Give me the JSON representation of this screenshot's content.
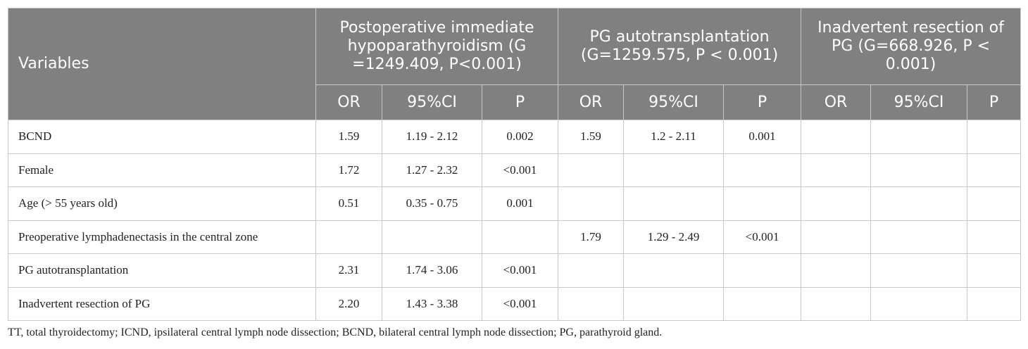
{
  "table": {
    "header": {
      "variables": "Variables",
      "groups": [
        "Postoperative immediate hypoparathyroidism (G =1249.409, P<0.001)",
        "PG autotransplantation (G=1259.575, P < 0.001)",
        "Inadvertent resection of PG (G=668.926, P < 0.001)"
      ],
      "subheaders": [
        "OR",
        "95%CI",
        "P",
        "OR",
        "95%CI",
        "P",
        "OR",
        "95%CI",
        "P"
      ]
    },
    "rows": [
      {
        "label": "BCND",
        "cells": [
          "1.59",
          "1.19 - 2.12",
          "0.002",
          "1.59",
          "1.2 - 2.11",
          "0.001",
          null,
          null,
          null
        ]
      },
      {
        "label": "Female",
        "cells": [
          "1.72",
          "1.27 - 2.32",
          "<0.001",
          null,
          null,
          null,
          null,
          null,
          null
        ]
      },
      {
        "label": "Age (> 55 years old)",
        "cells": [
          "0.51",
          "0.35 - 0.75",
          "0.001",
          null,
          null,
          null,
          null,
          null,
          null
        ]
      },
      {
        "label": "Preoperative lymphadenectasis in the central zone",
        "cells": [
          null,
          null,
          null,
          "1.79",
          "1.29 - 2.49",
          "<0.001",
          null,
          null,
          null
        ]
      },
      {
        "label": "PG autotransplantation",
        "cells": [
          "2.31",
          "1.74 - 3.06",
          "<0.001",
          null,
          null,
          null,
          null,
          null,
          null
        ]
      },
      {
        "label": "Inadvertent resection of PG",
        "cells": [
          "2.20",
          "1.43 - 3.38",
          "<0.001",
          null,
          null,
          null,
          null,
          null,
          null
        ]
      }
    ]
  },
  "footnote": "TT, total thyroidectomy; ICND, ipsilateral central lymph node dissection; BCND, bilateral central lymph node dissection; PG, parathyroid gland."
}
